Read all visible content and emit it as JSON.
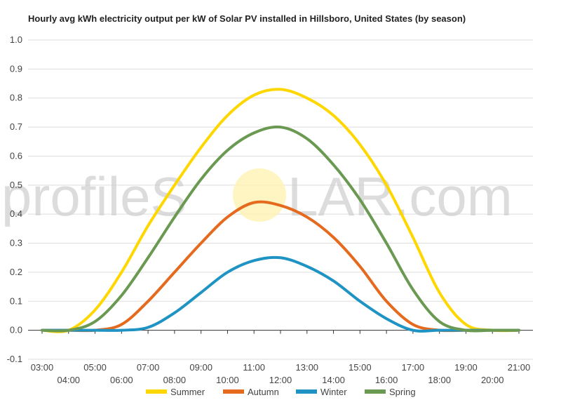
{
  "chart_data": {
    "type": "line",
    "title": "Hourly avg kWh electricity output per kW of Solar PV installed in Hillsboro, United States (by season)",
    "xlabel": "",
    "ylabel": "",
    "ylim": [
      -0.1,
      1.0
    ],
    "yticks": [
      "-0.1",
      "0.0",
      "0.1",
      "0.2",
      "0.3",
      "0.4",
      "0.5",
      "0.6",
      "0.7",
      "0.8",
      "0.9",
      "1.0"
    ],
    "x": [
      "03:00",
      "04:00",
      "05:00",
      "06:00",
      "07:00",
      "08:00",
      "09:00",
      "10:00",
      "11:00",
      "12:00",
      "13:00",
      "14:00",
      "15:00",
      "16:00",
      "17:00",
      "18:00",
      "19:00",
      "20:00",
      "21:00"
    ],
    "legend_position": "bottom",
    "grid": true,
    "series": [
      {
        "name": "Summer",
        "color": "#ffd700",
        "values": [
          0.0,
          0.0,
          0.07,
          0.2,
          0.36,
          0.5,
          0.63,
          0.74,
          0.81,
          0.83,
          0.8,
          0.74,
          0.64,
          0.5,
          0.32,
          0.13,
          0.02,
          0.0,
          0.0
        ]
      },
      {
        "name": "Autumn",
        "color": "#e56a1e",
        "values": [
          0.0,
          0.0,
          0.0,
          0.02,
          0.1,
          0.2,
          0.3,
          0.39,
          0.44,
          0.43,
          0.39,
          0.32,
          0.22,
          0.1,
          0.02,
          0.0,
          0.0,
          0.0,
          0.0
        ]
      },
      {
        "name": "Winter",
        "color": "#1f93c3",
        "values": [
          0.0,
          0.0,
          0.0,
          0.0,
          0.01,
          0.06,
          0.13,
          0.2,
          0.24,
          0.25,
          0.22,
          0.17,
          0.1,
          0.04,
          0.0,
          0.0,
          0.0,
          0.0,
          0.0
        ]
      },
      {
        "name": "Spring",
        "color": "#6a9a52",
        "values": [
          0.0,
          0.0,
          0.03,
          0.12,
          0.25,
          0.39,
          0.52,
          0.62,
          0.68,
          0.7,
          0.66,
          0.57,
          0.45,
          0.3,
          0.14,
          0.03,
          0.0,
          0.0,
          0.0
        ]
      }
    ]
  },
  "watermark": {
    "text_left": "profileS",
    "text_right": "LAR.com",
    "sun_color": "#fff3b3"
  }
}
